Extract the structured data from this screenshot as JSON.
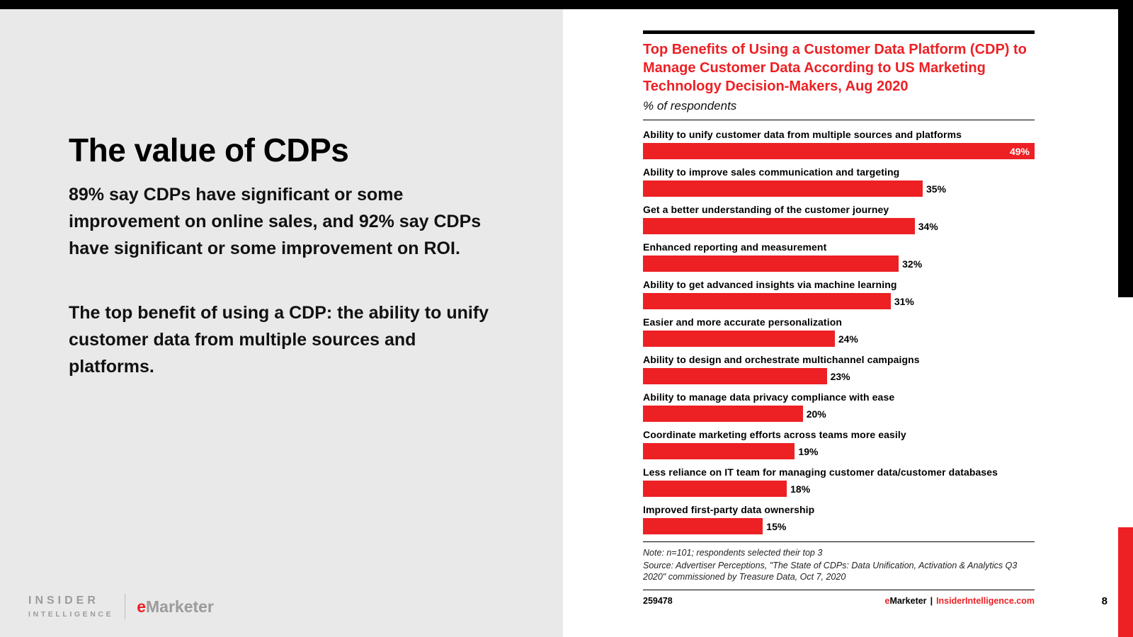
{
  "slide": {
    "page_number": "8",
    "left": {
      "title": "The value of CDPs",
      "paragraph1": "89% say CDPs have significant or some improvement on online sales, and 92% say CDPs have significant or some improvement on ROI.",
      "paragraph2": "The top benefit of using a CDP: the ability to unify customer data from multiple sources and platforms.",
      "logo": {
        "insider_line1": "INSIDER",
        "insider_line2": "INTELLIGENCE",
        "emarketer_e": "e",
        "emarketer_rest": "Marketer"
      }
    },
    "chart_footer": {
      "id": "259478",
      "brand_e": "e",
      "brand_rest": "Marketer",
      "separator": "|",
      "site": "InsiderIntelligence.com"
    }
  },
  "chart_data": {
    "type": "bar",
    "orientation": "horizontal",
    "title": "Top Benefits of Using a Customer Data Platform (CDP) to Manage Customer Data According to US Marketing Technology Decision-Makers, Aug 2020",
    "subtitle": "% of respondents",
    "categories": [
      "Ability to unify customer data from multiple sources and platforms",
      "Ability to improve sales communication and targeting",
      "Get a better understanding of the customer journey",
      "Enhanced reporting and measurement",
      "Ability to get advanced insights via machine learning",
      "Easier and more accurate personalization",
      "Ability to design and orchestrate multichannel campaigns",
      "Ability to manage data privacy compliance with ease",
      "Coordinate marketing efforts across teams more easily",
      "Less reliance on IT team for managing customer data/customer databases",
      "Improved first-party data ownership"
    ],
    "values": [
      49,
      35,
      34,
      32,
      31,
      24,
      23,
      20,
      19,
      18,
      15
    ],
    "value_suffix": "%",
    "xlim": [
      0,
      49
    ],
    "bar_color": "#ed2024",
    "legend": "none",
    "grid": false,
    "note": "Note: n=101; respondents selected their top 3",
    "source": "Source: Advertiser Perceptions, \"The State of CDPs: Data Unification, Activation & Analytics Q3 2020\" commissioned by Treasure Data, Oct 7, 2020"
  }
}
